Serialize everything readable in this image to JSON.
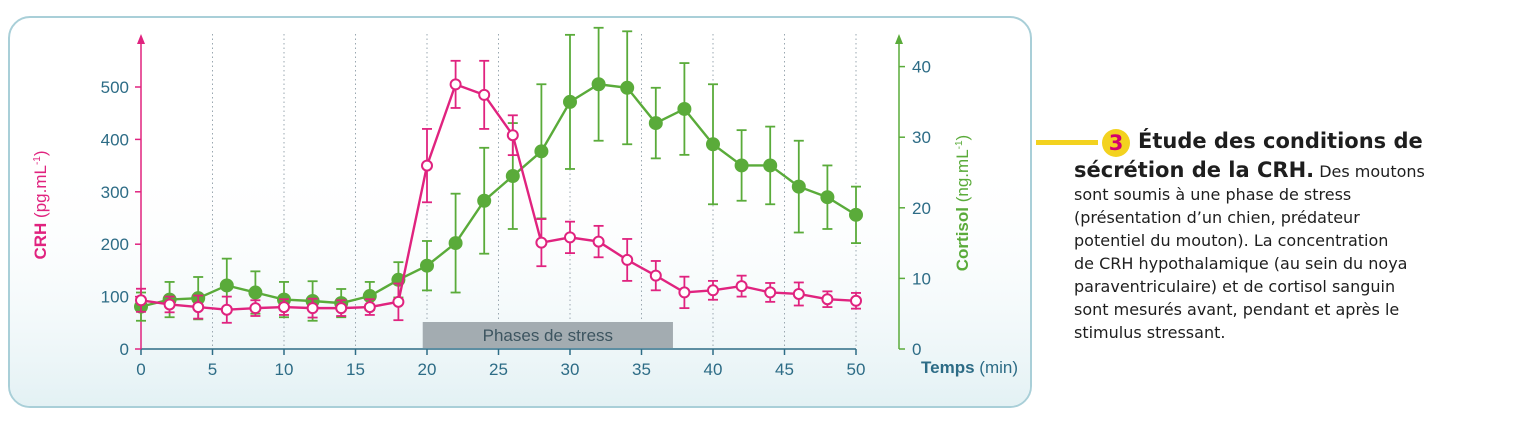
{
  "colors": {
    "crh": "#e0237f",
    "cortisol": "#5aab3a",
    "axis_text": "#2d6c86",
    "stress_box": "#a3acb1",
    "background_gradient": "#e3f1f4"
  },
  "chart_data": {
    "type": "line",
    "x_ticks": [
      0,
      5,
      10,
      15,
      20,
      25,
      30,
      35,
      40,
      45,
      50
    ],
    "xlabel_bold": "Temps",
    "xlabel_unit": "(min)",
    "y_left": {
      "label_bold": "CRH",
      "label_unit": "(pg.mL",
      "label_exp": "-1",
      "label_close": ")",
      "ticks": [
        0,
        100,
        200,
        300,
        400,
        500
      ],
      "ylim": [
        0,
        580
      ]
    },
    "y_right": {
      "label_bold": "Cortisol",
      "label_unit": "(ng.mL",
      "label_exp": "-1",
      "label_close": ")",
      "ticks": [
        0,
        10,
        20,
        30,
        40
      ],
      "ylim": [
        0,
        45
      ]
    },
    "grid": "vertical dotted lines",
    "annotation": {
      "label": "Phases de stress",
      "x_start": 19.7,
      "x_end": 37.2
    },
    "series": [
      {
        "name": "CRH",
        "axis": "left",
        "marker": "open circle",
        "points": [
          {
            "x": 0,
            "y": 93,
            "err": 22
          },
          {
            "x": 2,
            "y": 85,
            "err": 15
          },
          {
            "x": 4,
            "y": 80,
            "err": 22
          },
          {
            "x": 6,
            "y": 75,
            "err": 25
          },
          {
            "x": 8,
            "y": 78,
            "err": 15
          },
          {
            "x": 10,
            "y": 80,
            "err": 15
          },
          {
            "x": 12,
            "y": 78,
            "err": 18
          },
          {
            "x": 14,
            "y": 78,
            "err": 15
          },
          {
            "x": 16,
            "y": 80,
            "err": 15
          },
          {
            "x": 18,
            "y": 90,
            "err": 35
          },
          {
            "x": 20,
            "y": 350,
            "err": 70
          },
          {
            "x": 22,
            "y": 505,
            "err": 45
          },
          {
            "x": 24,
            "y": 485,
            "err": 65
          },
          {
            "x": 26,
            "y": 408,
            "err": 38
          },
          {
            "x": 28,
            "y": 203,
            "err": 45
          },
          {
            "x": 30,
            "y": 213,
            "err": 30
          },
          {
            "x": 32,
            "y": 205,
            "err": 30
          },
          {
            "x": 34,
            "y": 170,
            "err": 40
          },
          {
            "x": 36,
            "y": 140,
            "err": 28
          },
          {
            "x": 38,
            "y": 108,
            "err": 30
          },
          {
            "x": 40,
            "y": 112,
            "err": 18
          },
          {
            "x": 42,
            "y": 120,
            "err": 20
          },
          {
            "x": 44,
            "y": 108,
            "err": 18
          },
          {
            "x": 46,
            "y": 105,
            "err": 22
          },
          {
            "x": 48,
            "y": 95,
            "err": 15
          },
          {
            "x": 50,
            "y": 92,
            "err": 15
          }
        ]
      },
      {
        "name": "Cortisol",
        "axis": "right",
        "marker": "filled circle",
        "points": [
          {
            "x": 0,
            "y": 6.0,
            "err": 2.0
          },
          {
            "x": 2,
            "y": 7.0,
            "err": 2.5
          },
          {
            "x": 4,
            "y": 7.2,
            "err": 3.0
          },
          {
            "x": 6,
            "y": 9.0,
            "err": 3.8
          },
          {
            "x": 8,
            "y": 8.0,
            "err": 3.0
          },
          {
            "x": 10,
            "y": 7.0,
            "err": 2.5
          },
          {
            "x": 12,
            "y": 6.8,
            "err": 2.8
          },
          {
            "x": 14,
            "y": 6.5,
            "err": 2.0
          },
          {
            "x": 16,
            "y": 7.5,
            "err": 2.0
          },
          {
            "x": 18,
            "y": 9.8,
            "err": 2.5
          },
          {
            "x": 20,
            "y": 11.8,
            "err": 3.5
          },
          {
            "x": 22,
            "y": 15.0,
            "err": 7.0
          },
          {
            "x": 24,
            "y": 21.0,
            "err": 7.5
          },
          {
            "x": 26,
            "y": 24.5,
            "err": 7.5
          },
          {
            "x": 28,
            "y": 28.0,
            "err": 9.5
          },
          {
            "x": 30,
            "y": 35.0,
            "err": 9.5
          },
          {
            "x": 32,
            "y": 37.5,
            "err": 8.0
          },
          {
            "x": 34,
            "y": 37.0,
            "err": 8.0
          },
          {
            "x": 36,
            "y": 32.0,
            "err": 5.0
          },
          {
            "x": 38,
            "y": 34.0,
            "err": 6.5
          },
          {
            "x": 40,
            "y": 29.0,
            "err": 8.5
          },
          {
            "x": 42,
            "y": 26.0,
            "err": 5.0
          },
          {
            "x": 44,
            "y": 26.0,
            "err": 5.5
          },
          {
            "x": 46,
            "y": 23.0,
            "err": 6.5
          },
          {
            "x": 48,
            "y": 21.5,
            "err": 4.5
          },
          {
            "x": 50,
            "y": 19.0,
            "err": 4.0
          }
        ]
      }
    ]
  },
  "caption": {
    "number": "3",
    "title_line1": "Étude des conditions de",
    "title_line2": "sécrétion de la CRH.",
    "line2_rest": " Des moutons",
    "line3": "sont soumis à une phase de stress",
    "line4": "(présentation d’un chien, prédateur",
    "line5": "potentiel du mouton). La concentration",
    "line6": "de CRH hypothalamique (au sein du noya",
    "line7": "paraventriculaire) et de cortisol sanguin",
    "line8": "sont mesurés avant, pendant et après le",
    "line9": "stimulus stressant."
  }
}
